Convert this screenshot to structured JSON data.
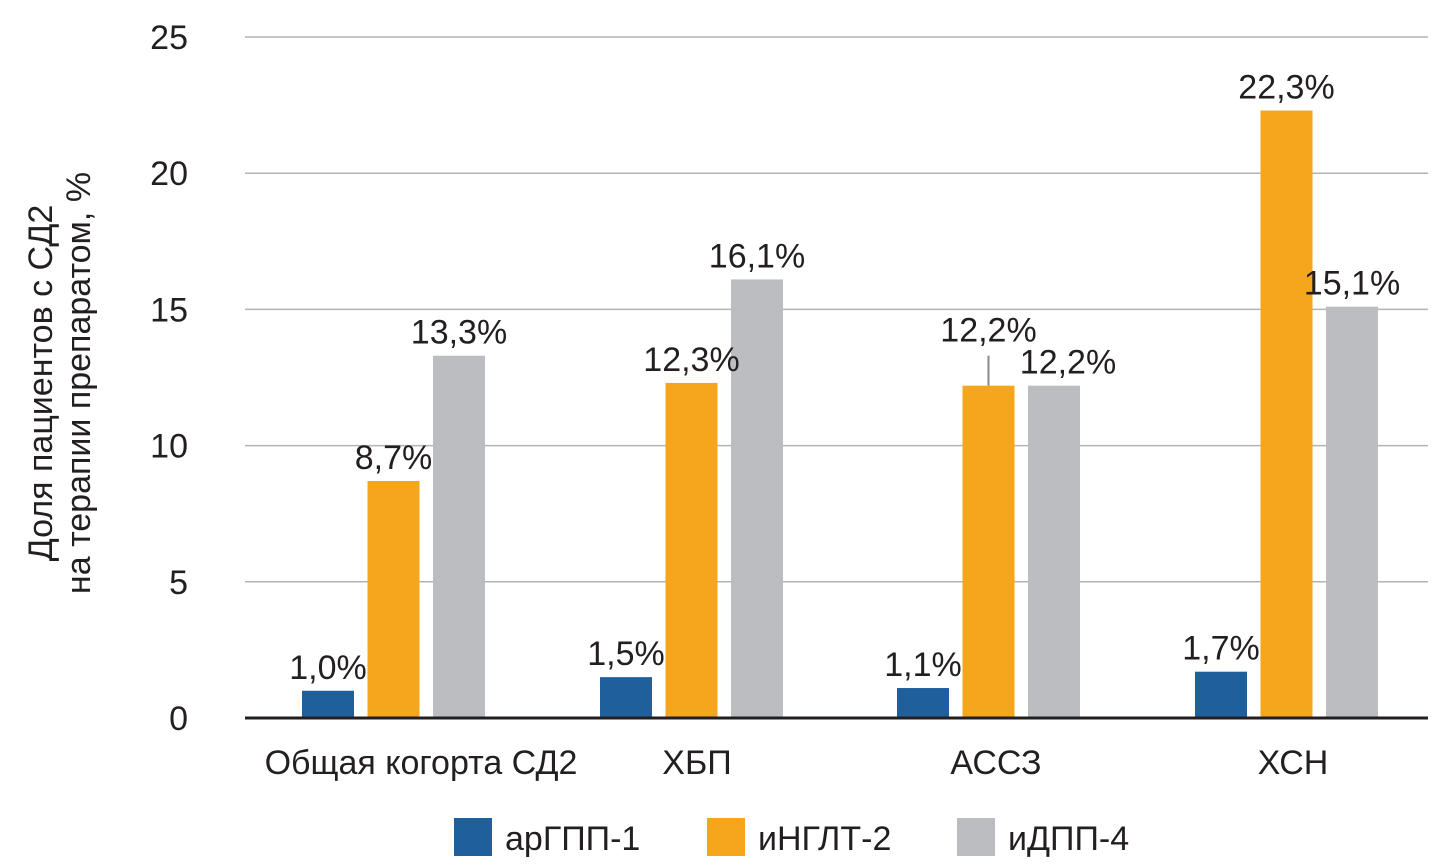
{
  "chart_data": {
    "type": "bar",
    "title": "",
    "xlabel": "",
    "ylabel_lines": [
      "Доля пациентов с СД2",
      "на терапии препаратом, %"
    ],
    "ylim": [
      0,
      25
    ],
    "yticks": [
      "0",
      "5",
      "10",
      "15",
      "20",
      "25"
    ],
    "ytick_values": [
      0,
      5,
      10,
      15,
      20,
      25
    ],
    "grid": true,
    "legend_position": "bottom",
    "categories": [
      "Общая когорта СД2",
      "ХБП",
      "АССЗ",
      "ХСН"
    ],
    "series": [
      {
        "name": "арГПП-1",
        "color": "#1f5f9c",
        "values": [
          1.0,
          1.5,
          1.1,
          1.7
        ],
        "labels": [
          "1,0%",
          "1,5%",
          "1,1%",
          "1,7%"
        ]
      },
      {
        "name": "иНГЛТ-2",
        "color": "#f6a61d",
        "values": [
          8.7,
          12.3,
          12.2,
          22.3
        ],
        "labels": [
          "8,7%",
          "12,3%",
          "12,2%",
          "22,3%"
        ]
      },
      {
        "name": "иДПП-4",
        "color": "#bcbdc0",
        "values": [
          13.3,
          16.1,
          12.2,
          15.1
        ],
        "labels": [
          "13,3%",
          "16,1%",
          "12,2%",
          "15,1%"
        ]
      }
    ]
  }
}
